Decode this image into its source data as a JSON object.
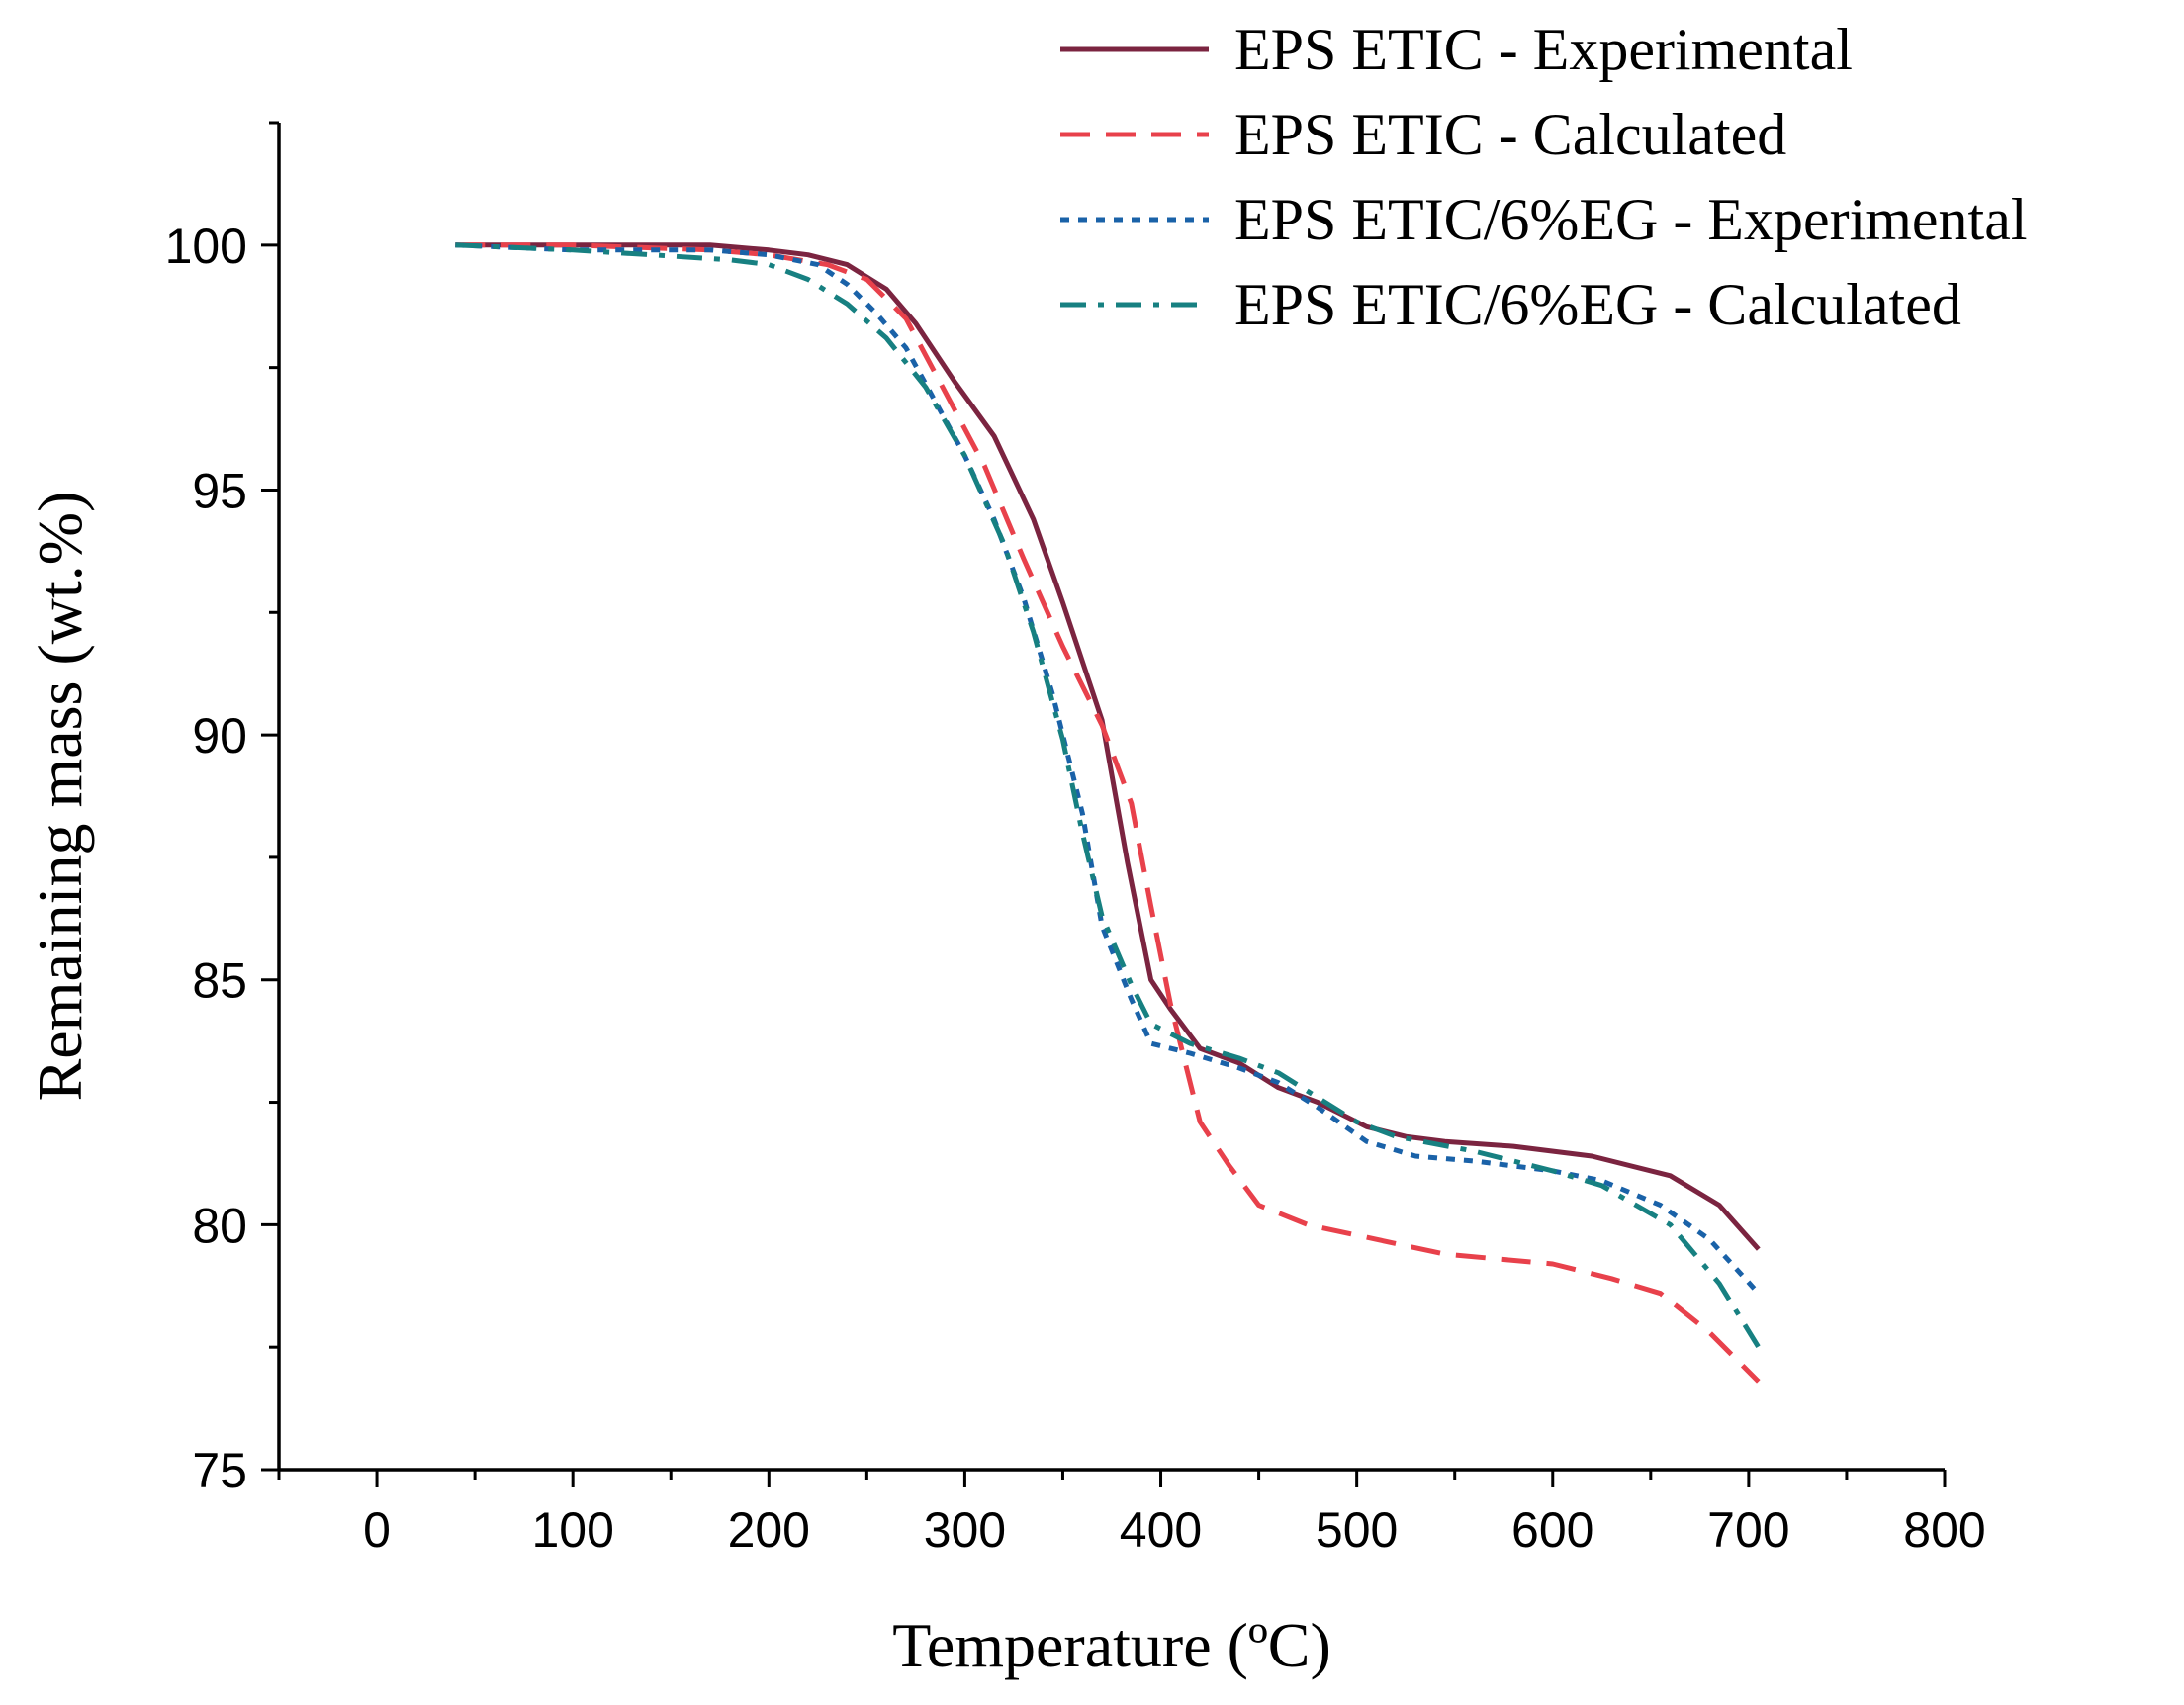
{
  "chart_data": {
    "type": "line",
    "title": "",
    "xlabel": "Temperature (ºC)",
    "ylabel": "Remaining mass (wt.%)",
    "xlim": [
      -50,
      800
    ],
    "ylim": [
      75,
      102.5
    ],
    "xticks": [
      0,
      100,
      200,
      300,
      400,
      500,
      600,
      700,
      800
    ],
    "yticks": [
      75,
      80,
      85,
      90,
      95,
      100
    ],
    "grid": false,
    "legend_position": "top-right",
    "series": [
      {
        "name": "EPS ETIC - Experimental",
        "color": "#7b2440",
        "dash": "solid",
        "points": [
          [
            40,
            100
          ],
          [
            100,
            100
          ],
          [
            170,
            100
          ],
          [
            200,
            99.9
          ],
          [
            220,
            99.8
          ],
          [
            240,
            99.6
          ],
          [
            260,
            99.1
          ],
          [
            275,
            98.4
          ],
          [
            295,
            97.2
          ],
          [
            315,
            96.1
          ],
          [
            335,
            94.4
          ],
          [
            350,
            92.7
          ],
          [
            370,
            90.3
          ],
          [
            383,
            87.4
          ],
          [
            395,
            85.0
          ],
          [
            405,
            84.4
          ],
          [
            420,
            83.6
          ],
          [
            440,
            83.3
          ],
          [
            460,
            82.8
          ],
          [
            480,
            82.5
          ],
          [
            505,
            82.0
          ],
          [
            525,
            81.8
          ],
          [
            545,
            81.7
          ],
          [
            580,
            81.6
          ],
          [
            620,
            81.4
          ],
          [
            660,
            81.0
          ],
          [
            685,
            80.4
          ],
          [
            705,
            79.5
          ]
        ]
      },
      {
        "name": "EPS ETIC - Calculated",
        "color": "#e8414b",
        "dash": "dashed",
        "points": [
          [
            40,
            100
          ],
          [
            100,
            100
          ],
          [
            170,
            99.9
          ],
          [
            200,
            99.8
          ],
          [
            230,
            99.6
          ],
          [
            250,
            99.3
          ],
          [
            270,
            98.5
          ],
          [
            290,
            97.0
          ],
          [
            310,
            95.5
          ],
          [
            330,
            93.6
          ],
          [
            350,
            91.8
          ],
          [
            370,
            90.2
          ],
          [
            385,
            88.6
          ],
          [
            395,
            86.5
          ],
          [
            405,
            84.5
          ],
          [
            420,
            82.1
          ],
          [
            435,
            81.2
          ],
          [
            450,
            80.4
          ],
          [
            475,
            80.0
          ],
          [
            510,
            79.7
          ],
          [
            545,
            79.4
          ],
          [
            600,
            79.2
          ],
          [
            630,
            78.9
          ],
          [
            655,
            78.6
          ],
          [
            680,
            77.8
          ],
          [
            705,
            76.8
          ]
        ]
      },
      {
        "name": "EPS ETIC/6%EG - Experimental",
        "color": "#1a62a8",
        "dash": "dotted",
        "points": [
          [
            40,
            100
          ],
          [
            100,
            99.9
          ],
          [
            170,
            99.9
          ],
          [
            200,
            99.8
          ],
          [
            225,
            99.6
          ],
          [
            240,
            99.2
          ],
          [
            255,
            98.6
          ],
          [
            270,
            97.9
          ],
          [
            285,
            96.8
          ],
          [
            300,
            95.7
          ],
          [
            315,
            94.4
          ],
          [
            330,
            92.8
          ],
          [
            345,
            90.8
          ],
          [
            360,
            88.4
          ],
          [
            370,
            86.1
          ],
          [
            385,
            84.6
          ],
          [
            395,
            83.7
          ],
          [
            415,
            83.5
          ],
          [
            440,
            83.2
          ],
          [
            460,
            82.9
          ],
          [
            480,
            82.4
          ],
          [
            505,
            81.7
          ],
          [
            530,
            81.4
          ],
          [
            560,
            81.3
          ],
          [
            600,
            81.1
          ],
          [
            625,
            80.9
          ],
          [
            655,
            80.4
          ],
          [
            680,
            79.7
          ],
          [
            705,
            78.6
          ]
        ]
      },
      {
        "name": "EPS ETIC/6%EG - Calculated",
        "color": "#178081",
        "dash": "dashdot",
        "points": [
          [
            40,
            100
          ],
          [
            100,
            99.9
          ],
          [
            140,
            99.8
          ],
          [
            180,
            99.7
          ],
          [
            200,
            99.6
          ],
          [
            220,
            99.3
          ],
          [
            240,
            98.8
          ],
          [
            260,
            98.1
          ],
          [
            280,
            97.1
          ],
          [
            300,
            95.7
          ],
          [
            320,
            93.9
          ],
          [
            335,
            92.1
          ],
          [
            350,
            89.9
          ],
          [
            360,
            88.0
          ],
          [
            370,
            86.3
          ],
          [
            385,
            84.9
          ],
          [
            395,
            84.1
          ],
          [
            415,
            83.7
          ],
          [
            440,
            83.4
          ],
          [
            460,
            83.1
          ],
          [
            480,
            82.6
          ],
          [
            500,
            82.1
          ],
          [
            520,
            81.8
          ],
          [
            560,
            81.5
          ],
          [
            600,
            81.1
          ],
          [
            625,
            80.8
          ],
          [
            660,
            80.0
          ],
          [
            685,
            78.8
          ],
          [
            705,
            77.5
          ]
        ]
      }
    ]
  }
}
